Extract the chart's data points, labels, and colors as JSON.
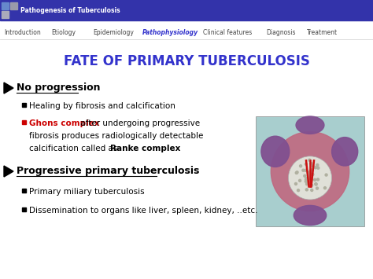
{
  "title": "FATE OF PRIMARY TUBERCULOSIS",
  "title_color": "#3333cc",
  "header_bg": "#3333aa",
  "header_text": "Pathogenesis of Tuberculosis",
  "nav_items": [
    "Introduction",
    "Etiology",
    "Epidemiology",
    "Pathophysiology",
    "Clinical features",
    "Diagnosis",
    "Treatment"
  ],
  "nav_active": "Pathophysiology",
  "nav_active_color": "#3333cc",
  "nav_inactive_color": "#444444",
  "bullet1_header": "No progression",
  "bullet1_sub1": "Healing by fibrosis and calcification",
  "bullet1_sub2_red": "Ghons complex",
  "bullet1_sub2_after": " after undergoing progressive",
  "bullet1_sub2_line2": "fibrosis produces radiologically detectable",
  "bullet1_sub2_line3_pre": "calcification called as ",
  "bullet1_sub2_bold": "Ranke complex",
  "bullet2_header": "Progressive primary tuberculosis",
  "bullet2_sub1": "Primary miliary tuberculosis",
  "bullet2_sub2": "Dissemination to organs like liver, spleen, kidney, ..etc.",
  "red_bullet_color": "#cc0000",
  "slide_bg": "#ffffff",
  "nav_spacings": [
    5,
    65,
    118,
    181,
    258,
    338,
    390
  ]
}
